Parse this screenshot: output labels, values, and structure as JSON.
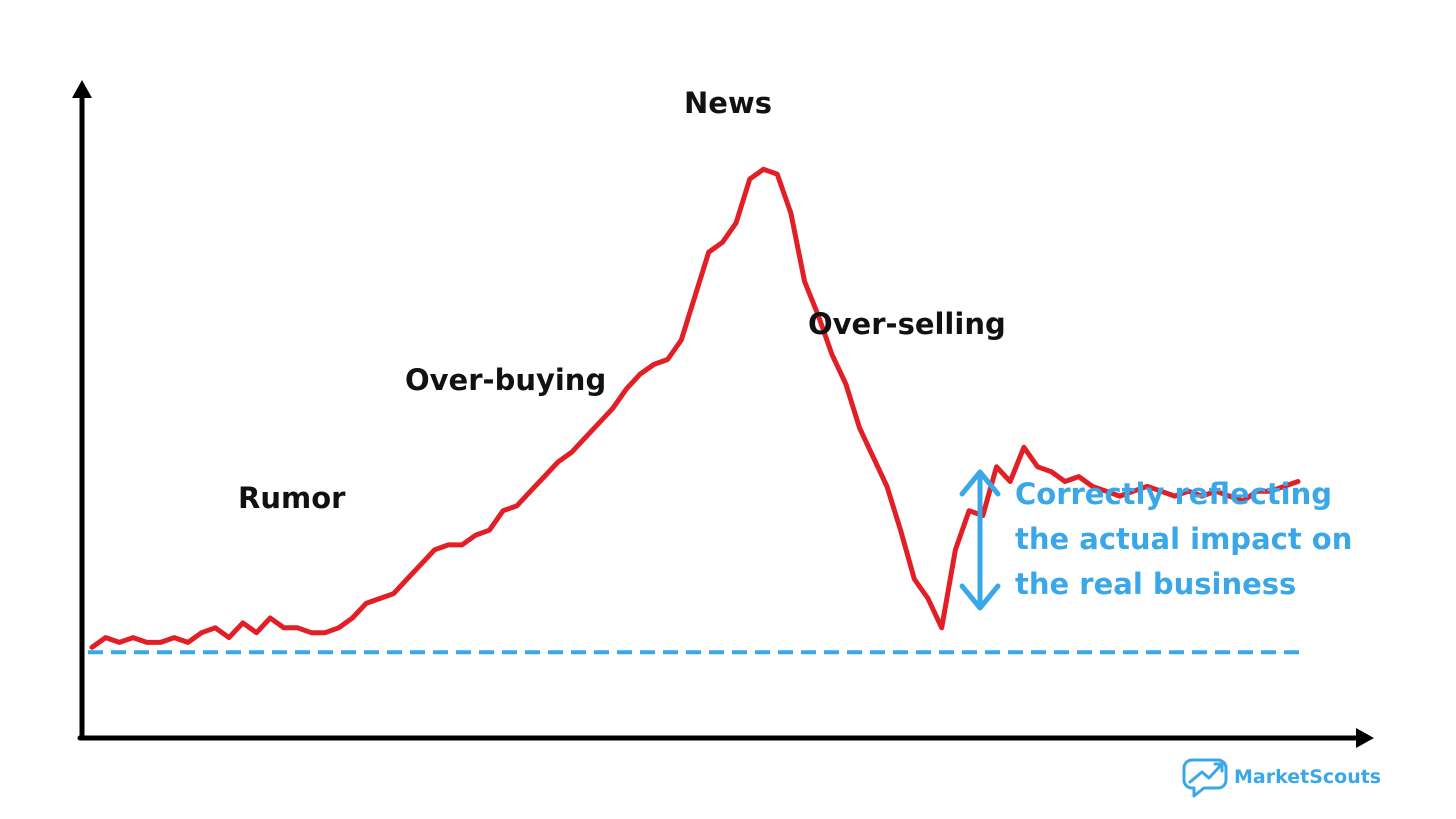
{
  "chart_data": {
    "type": "line",
    "title": "",
    "xlabel": "",
    "ylabel": "",
    "grid": false,
    "legend": "none",
    "axis_ticks": false,
    "colors": {
      "price_line": "#e21f26",
      "baseline": "#3aa7e8",
      "impact_text": "#3aa7e8",
      "axes": "#000000",
      "labels": "#111111"
    },
    "series": [
      {
        "values": [
          1,
          3,
          2,
          3,
          2,
          2,
          3,
          2,
          4,
          5,
          3,
          6,
          4,
          7,
          5,
          5,
          4,
          4,
          5,
          7,
          10,
          11,
          12,
          15,
          18,
          21,
          22,
          22,
          24,
          25,
          29,
          30,
          33,
          36,
          39,
          41,
          44,
          47,
          50,
          54,
          57,
          59,
          60,
          64,
          73,
          82,
          84,
          88,
          97,
          99,
          98,
          90,
          76,
          69,
          61,
          55,
          46,
          40,
          34,
          25,
          15,
          11,
          5,
          21,
          29,
          28,
          38,
          35,
          42,
          38,
          37,
          35,
          36,
          34,
          33,
          32,
          33,
          34,
          33,
          32,
          33,
          32,
          33,
          32,
          31,
          33,
          33,
          34,
          35
        ]
      }
    ],
    "annotations": {
      "rumor": "Rumor",
      "over_buying": "Over-buying",
      "news": "News",
      "over_selling": "Over-selling",
      "impact_lines": [
        "Correctly reflecting",
        "the actual impact on",
        "the real business"
      ]
    },
    "baseline_value": 0,
    "ylim": [
      -18,
      105
    ]
  },
  "branding": {
    "name": "MarketScouts",
    "icon": "chat-bubble-trend-icon",
    "color": "#3aa7e8"
  }
}
